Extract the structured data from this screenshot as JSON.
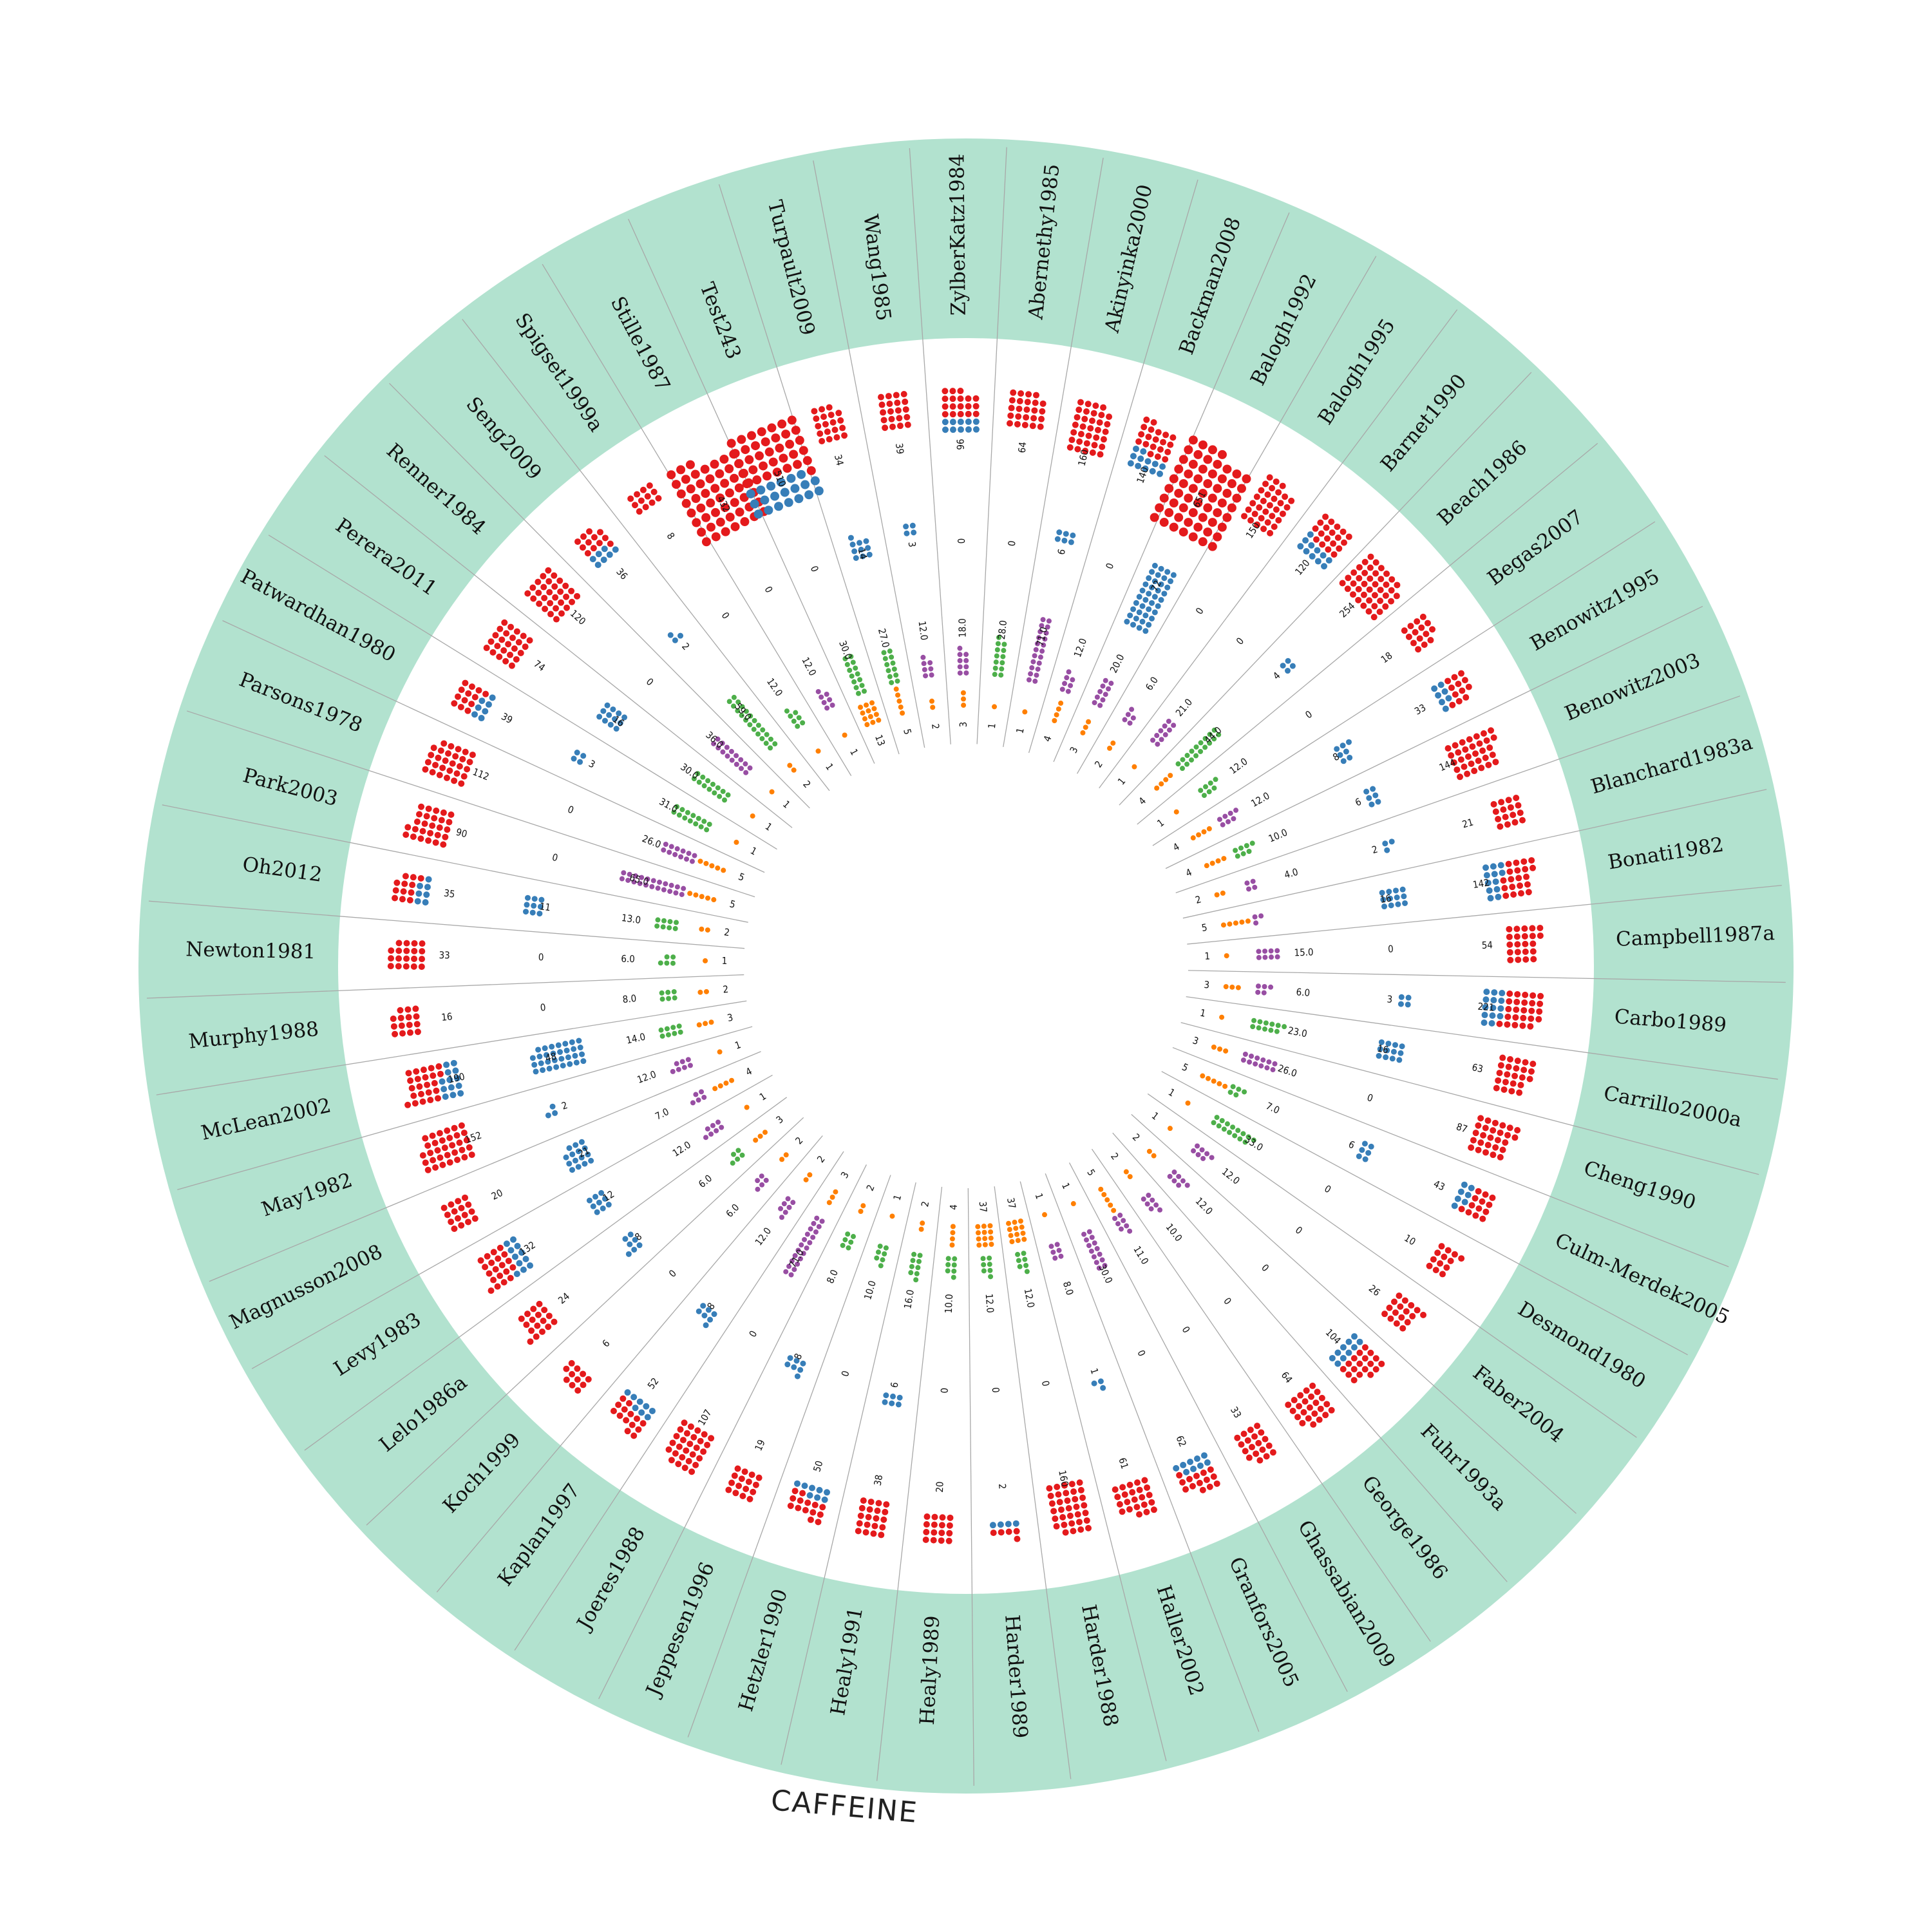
{
  "colors": {
    "band": "#b2e2cf",
    "divider": "#a8a8a8",
    "red": "#e41a1c",
    "blue": "#377eb8",
    "green": "#4daf4a",
    "purple": "#984ea3",
    "orange": "#ff7f00"
  },
  "chart_data": {
    "type": "radial-dot-plot",
    "title": "CAFFEINE",
    "rings": [
      "red-blue outcome",
      "blue",
      "purple/green value",
      "orange count"
    ],
    "studies": [
      {
        "name": "Campbell1987a",
        "outer": 54,
        "mid": 0,
        "value": "15.0",
        "vcolor": "purple",
        "inner": 1
      },
      {
        "name": "Carbo1989",
        "outer": 221,
        "mid": 3,
        "value": "6.0",
        "vcolor": "purple",
        "inner": 3
      },
      {
        "name": "Carrillo2000a",
        "outer": 63,
        "mid": 16,
        "value": "23.0",
        "vcolor": "green",
        "inner": 1
      },
      {
        "name": "Cheng1990",
        "outer": 87,
        "mid": 0,
        "value": "26.0",
        "vcolor": "purple",
        "inner": 3
      },
      {
        "name": "Culm-Merdek2005",
        "outer": 43,
        "mid": 6,
        "value": "7.0",
        "vcolor": "green",
        "inner": 5
      },
      {
        "name": "Desmond1980",
        "outer": 10,
        "mid": 0,
        "value": "33.0",
        "vcolor": "green",
        "inner": 1
      },
      {
        "name": "Faber2004",
        "outer": 26,
        "mid": 0,
        "value": "12.0",
        "vcolor": "purple",
        "inner": 1
      },
      {
        "name": "Fuhr1993a",
        "outer": 104,
        "mid": 0,
        "value": "12.0",
        "vcolor": "purple",
        "inner": 2
      },
      {
        "name": "George1986",
        "outer": 64,
        "mid": 0,
        "value": "10.0",
        "vcolor": "purple",
        "inner": 2
      },
      {
        "name": "Ghassabian2009",
        "outer": 33,
        "mid": 0,
        "value": "11.0",
        "vcolor": "purple",
        "inner": 5
      },
      {
        "name": "Granfors2005",
        "outer": 62,
        "mid": 0,
        "value": "30.0",
        "vcolor": "purple",
        "inner": 1
      },
      {
        "name": "Haller2002",
        "outer": 61,
        "mid": 1,
        "value": "8.0",
        "vcolor": "purple",
        "inner": 1
      },
      {
        "name": "Harder1988",
        "outer": 160,
        "mid": 0,
        "value": "12.0",
        "vcolor": "green",
        "inner": 37
      },
      {
        "name": "Harder1989",
        "outer": 2,
        "mid": 0,
        "value": "12.0",
        "vcolor": "green",
        "inner": 37
      },
      {
        "name": "Healy1989",
        "outer": 20,
        "mid": 0,
        "value": "10.0",
        "vcolor": "green",
        "inner": 4
      },
      {
        "name": "Healy1991",
        "outer": 38,
        "mid": 6,
        "value": "16.0",
        "vcolor": "green",
        "inner": 2
      },
      {
        "name": "Hetzler1990",
        "outer": 50,
        "mid": 0,
        "value": "10.0",
        "vcolor": "green",
        "inner": 1
      },
      {
        "name": "Jeppesen1996",
        "outer": 19,
        "mid": 8,
        "value": "8.0",
        "vcolor": "green",
        "inner": 2
      },
      {
        "name": "Joeres1988",
        "outer": 107,
        "mid": 0,
        "value": "71.0",
        "vcolor": "purple",
        "inner": 3
      },
      {
        "name": "Kaplan1997",
        "outer": 52,
        "mid": 8,
        "value": "12.0",
        "vcolor": "purple",
        "inner": 2
      },
      {
        "name": "Koch1999",
        "outer": 6,
        "mid": 0,
        "value": "6.0",
        "vcolor": "purple",
        "inner": 2
      },
      {
        "name": "Lelo1986a",
        "outer": 24,
        "mid": 8,
        "value": "6.0",
        "vcolor": "green",
        "inner": 3
      },
      {
        "name": "Levy1983",
        "outer": 132,
        "mid": 12,
        "value": "12.0",
        "vcolor": "purple",
        "inner": 1
      },
      {
        "name": "Magnusson2008",
        "outer": 20,
        "mid": 21,
        "value": "7.0",
        "vcolor": "purple",
        "inner": 4
      },
      {
        "name": "May1982",
        "outer": 152,
        "mid": 2,
        "value": "12.0",
        "vcolor": "purple",
        "inner": 1
      },
      {
        "name": "McLean2002",
        "outer": 190,
        "mid": 48,
        "value": "14.0",
        "vcolor": "green",
        "inner": 3
      },
      {
        "name": "Murphy1988",
        "outer": 16,
        "mid": 0,
        "value": "8.0",
        "vcolor": "green",
        "inner": 2
      },
      {
        "name": "Newton1981",
        "outer": 33,
        "mid": 0,
        "value": "6.0",
        "vcolor": "green",
        "inner": 1
      },
      {
        "name": "Oh2012",
        "outer": 35,
        "mid": 11,
        "value": "13.0",
        "vcolor": "green",
        "inner": 2
      },
      {
        "name": "Park2003",
        "outer": 90,
        "mid": 0,
        "value": "65.0",
        "vcolor": "purple",
        "inner": 5
      },
      {
        "name": "Parsons1978",
        "outer": 112,
        "mid": 0,
        "value": "26.0",
        "vcolor": "purple",
        "inner": 5
      },
      {
        "name": "Patwardhan1980",
        "outer": 39,
        "mid": 3,
        "value": "31.0",
        "vcolor": "green",
        "inner": 1
      },
      {
        "name": "Perera2011",
        "outer": 74,
        "mid": 16,
        "value": "30.0",
        "vcolor": "green",
        "inner": 1
      },
      {
        "name": "Renner1984",
        "outer": 120,
        "mid": 0,
        "value": "36.0",
        "vcolor": "purple",
        "inner": 1
      },
      {
        "name": "Seng2009",
        "outer": 36,
        "mid": 2,
        "value": "59.0",
        "vcolor": "green",
        "inner": 2
      },
      {
        "name": "Spigset1999a",
        "outer": 8,
        "mid": 0,
        "value": "12.0",
        "vcolor": "green",
        "inner": 1
      },
      {
        "name": "Stille1987",
        "outer": 432,
        "mid": 0,
        "value": "12.0",
        "vcolor": "purple",
        "inner": 1
      },
      {
        "name": "Test243",
        "outer": 510,
        "mid": 0,
        "value": "30.0",
        "vcolor": "green",
        "inner": 13
      },
      {
        "name": "Turpault2009",
        "outer": 34,
        "mid": 14,
        "value": "27.0",
        "vcolor": "green",
        "inner": 5
      },
      {
        "name": "Wang1985",
        "outer": 39,
        "mid": 3,
        "value": "12.0",
        "vcolor": "purple",
        "inner": 2
      },
      {
        "name": "ZylberKatz1984",
        "outer": 96,
        "mid": 0,
        "value": "18.0",
        "vcolor": "purple",
        "inner": 3
      },
      {
        "name": "Abernethy1985",
        "outer": 64,
        "mid": 0,
        "value": "28.0",
        "vcolor": "green",
        "inner": 1
      },
      {
        "name": "Akinyinka2000",
        "outer": 160,
        "mid": 6,
        "value": "71.0",
        "vcolor": "purple",
        "inner": 1
      },
      {
        "name": "Backman2008",
        "outer": 140,
        "mid": 0,
        "value": "12.0",
        "vcolor": "purple",
        "inner": 4
      },
      {
        "name": "Balogh1992",
        "outer": 651,
        "mid": 72,
        "value": "20.0",
        "vcolor": "purple",
        "inner": 3
      },
      {
        "name": "Balogh1995",
        "outer": 150,
        "mid": 0,
        "value": "6.0",
        "vcolor": "purple",
        "inner": 2
      },
      {
        "name": "Barnet1990",
        "outer": 120,
        "mid": 0,
        "value": "21.0",
        "vcolor": "purple",
        "inner": 1
      },
      {
        "name": "Beach1986",
        "outer": 254,
        "mid": 4,
        "value": "44.0",
        "vcolor": "green",
        "inner": 4
      },
      {
        "name": "Begas2007",
        "outer": 18,
        "mid": 0,
        "value": "12.0",
        "vcolor": "green",
        "inner": 1
      },
      {
        "name": "Benowitz1995",
        "outer": 33,
        "mid": 8,
        "value": "12.0",
        "vcolor": "purple",
        "inner": 4
      },
      {
        "name": "Benowitz2003",
        "outer": 144,
        "mid": 6,
        "value": "10.0",
        "vcolor": "green",
        "inner": 4
      },
      {
        "name": "Blanchard1983a",
        "outer": 21,
        "mid": 2,
        "value": "4.0",
        "vcolor": "purple",
        "inner": 2
      },
      {
        "name": "Bonati1982",
        "outer": 142,
        "mid": 16,
        "value": "",
        "vcolor": "purple",
        "inner": 5
      }
    ]
  }
}
